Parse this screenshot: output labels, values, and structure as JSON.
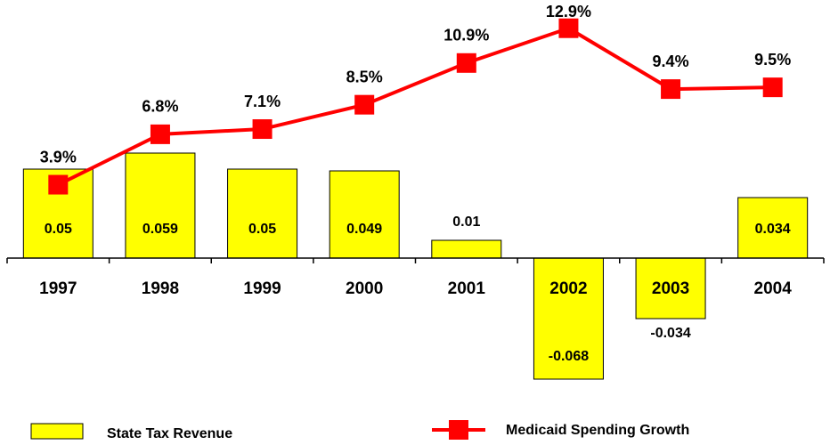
{
  "chart_data": {
    "type": "bar+line",
    "categories": [
      "1997",
      "1998",
      "1999",
      "2000",
      "2001",
      "2002",
      "2003",
      "2004"
    ],
    "series": [
      {
        "name": "State Tax Revenue",
        "type": "bar",
        "color": "#ffff00",
        "values": [
          0.05,
          0.059,
          0.05,
          0.049,
          0.01,
          -0.068,
          -0.034,
          0.034
        ]
      },
      {
        "name": "Medicaid Spending Growth",
        "type": "line",
        "color": "#ff0000",
        "axis": "y2",
        "values": [
          3.9,
          6.8,
          7.1,
          8.5,
          10.9,
          12.9,
          9.4,
          9.5
        ],
        "value_labels": [
          "3.9%",
          "6.8%",
          "7.1%",
          "8.5%",
          "10.9%",
          "12.9%",
          "9.4%",
          "9.5%"
        ]
      }
    ],
    "ylim": [
      -0.075,
      0.135
    ],
    "y2lim": [
      -8,
      13.5
    ]
  }
}
